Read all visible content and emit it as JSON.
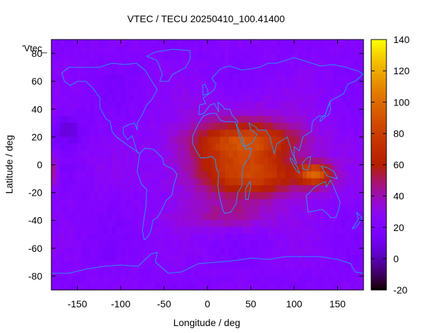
{
  "chart_data": {
    "type": "heatmap",
    "title": "VTEC / TECU 20250410_100.41400",
    "xlabel": "Longitude / deg",
    "ylabel": "Latitude / deg",
    "key_label": "'Vtec_",
    "xlim": [
      -180,
      180
    ],
    "ylim": [
      -90,
      90
    ],
    "x_ticks": [
      -150,
      -100,
      -50,
      0,
      50,
      100,
      150
    ],
    "y_ticks": [
      -80,
      -60,
      -40,
      -20,
      0,
      20,
      40,
      60,
      80
    ],
    "colorbar": {
      "range": [
        -20,
        140
      ],
      "ticks": [
        -20,
        0,
        20,
        40,
        60,
        80,
        100,
        120,
        140
      ],
      "colormap": "gnuplot-rgbformulae-7-5-15",
      "colors": [
        "#000000",
        "#5a00c8",
        "#8a22ff",
        "#c0202a",
        "#e05a00",
        "#ffb000",
        "#ffff40"
      ]
    },
    "grid": false,
    "legend": "colorbar-right",
    "overlay": "coastlines",
    "overlay_color": "#1ea0ff",
    "field": {
      "background_tec": 22,
      "features": [
        {
          "kind": "equatorial-crest",
          "center_lon": 40,
          "center_lat": 5,
          "lon_spread": 70,
          "lat_spread": 30,
          "peak_tec": 50
        },
        {
          "kind": "crest",
          "center_lon": 50,
          "center_lat": 18,
          "lon_spread": 60,
          "lat_spread": 10,
          "peak_tec": 25
        },
        {
          "kind": "crest",
          "center_lon": 70,
          "center_lat": -10,
          "lon_spread": 70,
          "lat_spread": 12,
          "peak_tec": 20
        },
        {
          "kind": "peak",
          "center_lon": 125,
          "center_lat": -7,
          "lon_spread": 18,
          "lat_spread": 8,
          "peak_tec": 60
        },
        {
          "kind": "southern-extension",
          "center_lon": 20,
          "center_lat": -38,
          "lon_spread": 50,
          "lat_spread": 10,
          "peak_tec": 18
        },
        {
          "kind": "west-edge-patch",
          "center_lon": -178,
          "center_lat": -5,
          "lon_spread": 6,
          "lat_spread": 12,
          "peak_tec": 25
        },
        {
          "kind": "depletion",
          "center_lon": -160,
          "center_lat": 25,
          "lon_spread": 15,
          "lat_spread": 10,
          "peak_tec": -15
        }
      ]
    }
  }
}
